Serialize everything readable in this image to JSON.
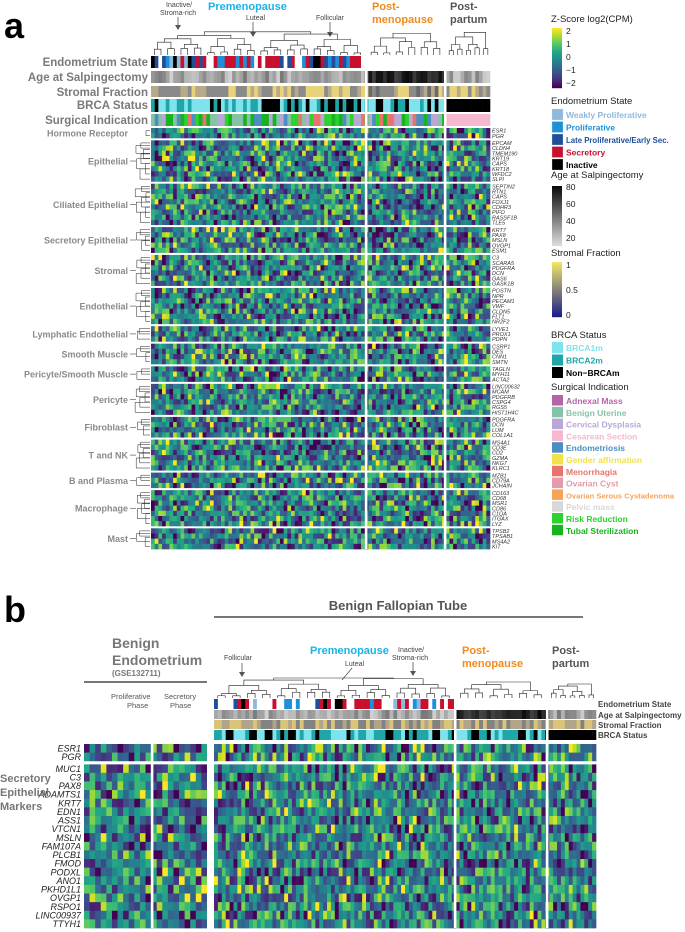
{
  "panel_a": {
    "letter": "a",
    "phase_premenopause": "Premenopause",
    "phase_postmenopause_1": "Post-",
    "phase_postmenopause_2": "menopause",
    "phase_postpartum_1": "Post-",
    "phase_postpartum_2": "partum",
    "callout_inactive_1": "Inactive/",
    "callout_inactive_2": "Stroma-rich",
    "callout_luteal": "Luteal",
    "callout_follicular": "Follicular",
    "track_labels": [
      "Endometrium State",
      "Age at Salpingectomy",
      "Stromal Fraction",
      "BRCA Status",
      "Surgical Indication"
    ],
    "row_groups": [
      {
        "label": "Hormone Receptor",
        "genes": [
          "ESR1",
          "PGR"
        ]
      },
      {
        "label": "Epithelial",
        "genes": [
          "EPCAM",
          "CLDN4",
          "TMEM190",
          "KRT19",
          "CAPS",
          "KRT18",
          "WFDC2",
          "SLPI"
        ]
      },
      {
        "label": "Ciliated Epithelial",
        "genes": [
          "SEPTIN2",
          "RTN1",
          "CAPS",
          "FOXJ1",
          "CDHR3",
          "PIFO",
          "RASSF1B",
          "TLE5"
        ]
      },
      {
        "label": "Secretory Epithelial",
        "genes": [
          "KRT7",
          "PAX8",
          "MSLN",
          "OVGP1",
          "ESM1"
        ]
      },
      {
        "label": "Stromal",
        "genes": [
          "C3",
          "SCARA5",
          "PDGFRA",
          "DCN",
          "GAS6",
          "GASK1B"
        ]
      },
      {
        "label": "Endothelial",
        "genes": [
          "POSTN",
          "NPR",
          "PECAM1",
          "VWF",
          "CLDN5",
          "FLT1",
          "NR2F2"
        ]
      },
      {
        "label": "Lymphatic Endothelial",
        "genes": [
          "LYVE1",
          "PROX1",
          "PDPN"
        ]
      },
      {
        "label": "Smooth Muscle",
        "genes": [
          "CSRP1",
          "DES",
          "CNN1",
          "SMTN"
        ]
      },
      {
        "label": "Pericyte/Smooth Muscle",
        "genes": [
          "TAGLN",
          "MYH11",
          "ACTA2"
        ]
      },
      {
        "label": "Pericyte",
        "genes": [
          "LINC00632",
          "MCAM",
          "PDGFRB",
          "CSPG4",
          "RGS5",
          "HIST1H4C"
        ]
      },
      {
        "label": "Fibroblast",
        "genes": [
          "PDGFRA",
          "DCN",
          "LUM",
          "COL1A1"
        ]
      },
      {
        "label": "T and NK",
        "genes": [
          "MS4A1",
          "CD3E",
          "CD2",
          "GZMA",
          "NKG7",
          "KLRC1"
        ]
      },
      {
        "label": "B and Plasma",
        "genes": [
          "MZB1",
          "CD79A",
          "JCHAIN"
        ]
      },
      {
        "label": "Macrophage",
        "genes": [
          "CD163",
          "CD68",
          "MSR1",
          "CD86",
          "C1QA",
          "ITGAX",
          "LYZ"
        ]
      },
      {
        "label": "Mast",
        "genes": [
          "TPSB2",
          "TPSAB1",
          "MS4A2",
          "KIT"
        ]
      }
    ],
    "legend": {
      "zscore_title": "Z-Score log2(CPM)",
      "zscore_ticks": [
        "2",
        "1",
        "0",
        "−1",
        "−2"
      ],
      "endo_title": "Endometrium State",
      "endo_items": [
        {
          "label": "Weakly Proliferative",
          "color": "#8fb8de"
        },
        {
          "label": "Proliferative",
          "color": "#1e90d8"
        },
        {
          "label": "Late Proliferative/Early Sec.",
          "color": "#1f4e9a"
        },
        {
          "label": "Secretory",
          "color": "#c8102e"
        },
        {
          "label": "Inactive",
          "color": "#000000"
        }
      ],
      "age_title": "Age at Salpingectomy",
      "age_ticks": [
        "80",
        "60",
        "40",
        "20"
      ],
      "stromal_title": "Stromal Fraction",
      "stromal_ticks": [
        "1",
        "0.5",
        "0"
      ],
      "brca_title": "BRCA Status",
      "brca_items": [
        {
          "label": "BRCA1m",
          "color": "#7fe3ee"
        },
        {
          "label": "BRCA2m",
          "color": "#1fa6a8"
        },
        {
          "label": "Non−BRCAm",
          "color": "#000000"
        }
      ],
      "surg_title": "Surgical Indication",
      "surg_items": [
        {
          "label": "Adnexal Mass",
          "color": "#b565a7"
        },
        {
          "label": "Benign Uterine",
          "color": "#86c3a6"
        },
        {
          "label": "Cervical Dysplasia",
          "color": "#b9a8d6"
        },
        {
          "label": "Cesarean Section",
          "color": "#f5b8d0"
        },
        {
          "label": "Endometriosis",
          "color": "#4a8ec2"
        },
        {
          "label": "Gender affirmation",
          "color": "#f2e24a"
        },
        {
          "label": "Menorrhagia",
          "color": "#e8736c"
        },
        {
          "label": "Ovarian Cyst",
          "color": "#e49bab"
        },
        {
          "label": "Ovarian Serous Cystadenoma",
          "color": "#f5a45a"
        },
        {
          "label": "Pelvic mass",
          "color": "#d8d8d8"
        },
        {
          "label": "Risk Reduction",
          "color": "#2fd12f"
        },
        {
          "label": "Tubal Sterilization",
          "color": "#17b320"
        }
      ]
    }
  },
  "panel_b": {
    "letter": "b",
    "group_title": "Benign Fallopian Tube",
    "endo_title_1": "Benign",
    "endo_title_2": "Endometrium",
    "endo_title_3": "(GSE132711)",
    "prolif_1": "Proliferative",
    "prolif_2": "Phase",
    "secr_1": "Secretory",
    "secr_2": "Phase",
    "phase_premenopause": "Premenopause",
    "phase_postmenopause_1": "Post-",
    "phase_postmenopause_2": "menopause",
    "phase_postpartum_1": "Post-",
    "phase_postpartum_2": "partum",
    "callout_follicular": "Follicular",
    "callout_luteal": "Luteal",
    "callout_inactive_1": "Inactive/",
    "callout_inactive_2": "Stroma-rich",
    "track_labels": [
      "Endometrium State",
      "Age at Salpingectomy",
      "Stromal Fraction",
      "BRCA Status"
    ],
    "genes_top": [
      "ESR1",
      "PGR"
    ],
    "genes_main": [
      "MUC1",
      "C3",
      "PAX8",
      "ADAMTS1",
      "KRT7",
      "EDN1",
      "ASS1",
      "VTCN1",
      "MSLN",
      "FAM107A",
      "PLCB1",
      "FMOD",
      "PODXL",
      "ANO1",
      "PKHD1L1",
      "OVGP1",
      "RSPO1",
      "LINC00937",
      "TTYH1"
    ],
    "markers_label_1": "Secretory",
    "markers_label_2": "Epithelial",
    "markers_label_3": "Markers"
  },
  "colors": {
    "premenopause": "#1ab2e8",
    "postmenopause": "#f28a1e",
    "postpartum": "#555555",
    "track_label": "#7a7a7a"
  }
}
